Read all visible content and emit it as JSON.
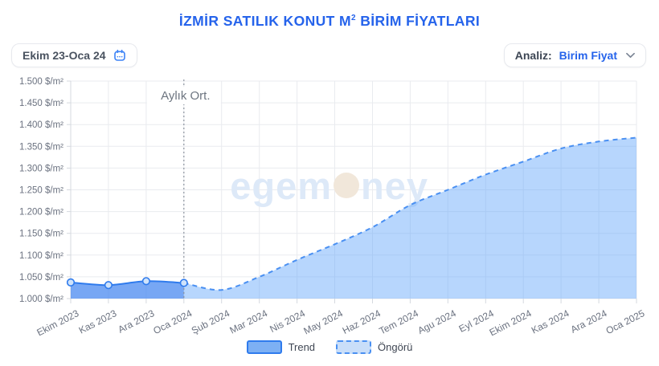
{
  "header": {
    "title_prefix": "İZMİR SATILIK KONUT M",
    "title_sup": "2",
    "title_suffix": " BİRİM FİYATLARI"
  },
  "toolbar": {
    "date_range": "Ekim 23-Oca 24",
    "analysis_label": "Analiz:",
    "analysis_value": "Birim Fiyat",
    "calendar_icon": "calendar-icon",
    "chevron_icon": "chevron-down-icon"
  },
  "watermark": {
    "part1": "egem",
    "part2": "ney"
  },
  "chart_data": {
    "type": "area",
    "title": "İZMİR SATILIK KONUT M² BİRİM FİYATLARI",
    "categories": [
      "Ekim 2023",
      "Kas 2023",
      "Ara 2023",
      "Oca 2024",
      "Şub 2024",
      "Mar 2024",
      "Nis 2024",
      "May 2024",
      "Haz 2024",
      "Tem 2024",
      "Agu 2024",
      "Eyl 2024",
      "Ekim 2024",
      "Kas 2024",
      "Ara 2024",
      "Oca 2025"
    ],
    "series": [
      {
        "name": "Trend",
        "style": "solid",
        "markers": true,
        "x_indices": [
          0,
          1,
          2,
          3
        ],
        "values": [
          1037,
          1031,
          1040,
          1036
        ]
      },
      {
        "name": "Öngörü",
        "style": "dashed",
        "markers": false,
        "x_indices": [
          3,
          4,
          5,
          6,
          7,
          8,
          9,
          10,
          11,
          12,
          13,
          14,
          15
        ],
        "values": [
          1036,
          1020,
          1050,
          1089,
          1125,
          1164,
          1215,
          1250,
          1285,
          1315,
          1345,
          1361,
          1370
        ]
      }
    ],
    "ylim": [
      1000,
      1500
    ],
    "y_tick_step": 50,
    "y_tick_suffix": " $/m²",
    "grid": true,
    "legend_position": "bottom",
    "annotation": {
      "label": "Aylık Ort.",
      "x_index": 3
    },
    "legend": [
      {
        "label": "Trend"
      },
      {
        "label": "Öngörü"
      }
    ],
    "colors": {
      "grid": "#e9ebef",
      "axis": "#d5d9df",
      "tick_text": "#6b7280",
      "trend_line": "#2f7bed",
      "trend_fill": "#4285f0",
      "forecast_line": "#4a90f2",
      "forecast_fill": "#60a5fa",
      "marker_fill": "#cfe3fb",
      "annotation_line": "#8b939e",
      "annotation_text": "#6d7580",
      "watermark": "#dde9f8",
      "watermark_dot": "#f1e7da",
      "trend_swatch_fill": "#7db0f4",
      "forecast_swatch_fill": "#c9def9"
    }
  }
}
